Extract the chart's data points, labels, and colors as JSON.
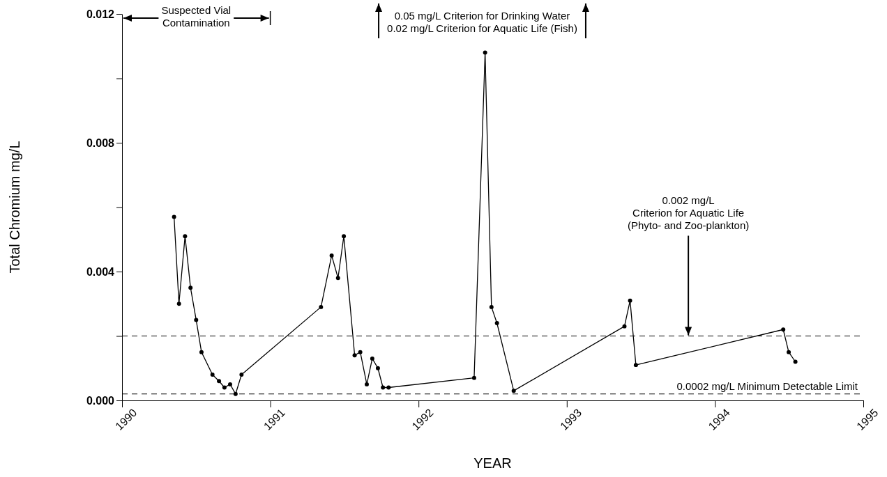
{
  "chart_data": {
    "type": "line",
    "xlabel": "YEAR",
    "ylabel": "Total Chromium mg/L",
    "x": [
      1990.351,
      1990.384,
      1990.425,
      1990.462,
      1990.5,
      1990.536,
      1990.61,
      1990.654,
      1990.691,
      1990.729,
      1990.766,
      1990.806,
      1991.342,
      1991.414,
      1991.457,
      1991.496,
      1991.569,
      1991.607,
      1991.651,
      1991.688,
      1991.726,
      1991.76,
      1991.798,
      1992.375,
      1992.449,
      1992.492,
      1992.529,
      1992.642,
      1993.389,
      1993.427,
      1993.466,
      1994.46,
      1994.497,
      1994.542
    ],
    "series": [
      {
        "color": "#000000",
        "values": [
          0.0057,
          0.003,
          0.0051,
          0.0035,
          0.0025,
          0.0015,
          0.0008,
          0.0006,
          0.0004,
          0.0005,
          0.0002,
          0.0008,
          0.0029,
          0.0045,
          0.0038,
          0.0051,
          0.0014,
          0.0015,
          0.0005,
          0.0013,
          0.001,
          0.0004,
          0.0004,
          0.0007,
          0.0108,
          0.0029,
          0.0024,
          0.0003,
          0.0023,
          0.0031,
          0.0011,
          0.0022,
          0.0015,
          0.0012
        ]
      }
    ],
    "xlim": [
      1990,
      1995
    ],
    "xticks": [
      1990,
      1991,
      1992,
      1993,
      1994,
      1995
    ],
    "ylim": [
      0,
      0.012
    ],
    "yticks": [
      {
        "value": 0,
        "label": "0.000"
      },
      {
        "value": 0.002,
        "label": null
      },
      {
        "value": 0.004,
        "label": "0.004"
      },
      {
        "value": 0.006,
        "label": null
      },
      {
        "value": 0.008,
        "label": "0.008"
      },
      {
        "value": 0.01,
        "label": null
      },
      {
        "value": 0.012,
        "label": "0.012"
      }
    ],
    "ref_lines": [
      {
        "axis": "y",
        "value": 0.002,
        "line_style": "dashed",
        "color": "#000000"
      },
      {
        "axis": "y",
        "value": 0.0002,
        "label": "0.0002 mg/L Minimum Detectable Limit",
        "line_style": "dashed",
        "color": "#000000"
      }
    ],
    "annotations": [
      "Suspected Vial\nContamination",
      "0.05 mg/L Criterion for Drinking Water\n0.02 mg/L Criterion for Aquatic Life (Fish)",
      {
        "text": "0.002 mg/L\nCriterion for Aquatic Life\n(Phyto- and Zoo-plankton)",
        "x": 1993.82,
        "y": 0.002
      }
    ],
    "marker": "circle",
    "line_style": "solid"
  }
}
